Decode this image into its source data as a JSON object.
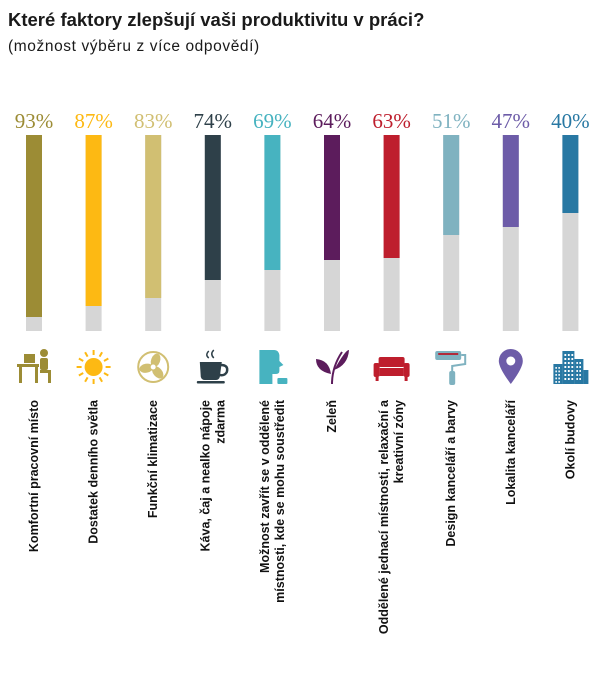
{
  "title": "Které faktory zlepšují vaši produktivitu v práci?",
  "subtitle": "(možnost výběru z více odpovědí)",
  "chart_data": {
    "type": "bar",
    "ylim": [
      0,
      100
    ],
    "grid": false,
    "categories": [
      [
        "Komfortní pracovní místo"
      ],
      [
        "Dostatek denního světla"
      ],
      [
        "Funkční klimatizace"
      ],
      [
        "Káva, čaj a nealko nápoje",
        "zdarma"
      ],
      [
        "Možnost zavřít se v oddělené",
        "místnosti, kde se mohu soustředit"
      ],
      [
        "Zeleň"
      ],
      [
        "Oddělené jednací místnosti, relaxační a",
        "kreativní zóny"
      ],
      [
        "Design kanceláří a barvy"
      ],
      [
        "Lokalita kanceláří"
      ],
      [
        "Okolí budovy"
      ]
    ],
    "values": [
      93,
      87,
      83,
      74,
      69,
      64,
      63,
      51,
      47,
      40
    ],
    "value_labels": [
      "93%",
      "87%",
      "83%",
      "74%",
      "69%",
      "64%",
      "63%",
      "51%",
      "47%",
      "40%"
    ],
    "colors": [
      "#9c8c35",
      "#fdb913",
      "#d1bf72",
      "#2e4049",
      "#47b3c0",
      "#5c1c5c",
      "#be1e2d",
      "#7fb2c0",
      "#6d5ca8",
      "#2878a3"
    ],
    "icons": [
      "desk-worker-icon",
      "sun-icon",
      "fan-icon",
      "coffee-cup-icon",
      "person-profile-icon",
      "plant-leaves-icon",
      "sofa-icon",
      "paint-roller-icon",
      "map-pin-icon",
      "city-buildings-icon"
    ],
    "remainder_color": "#d6d6d6"
  }
}
